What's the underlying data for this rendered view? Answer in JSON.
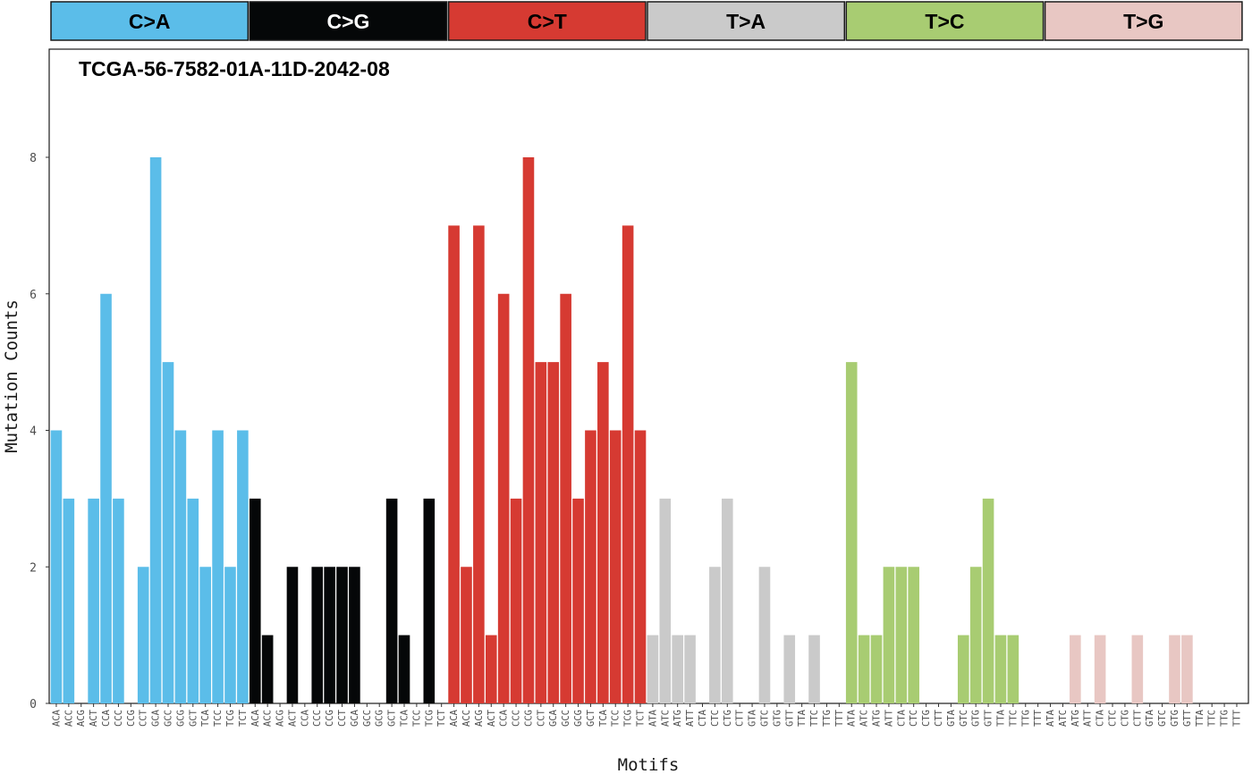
{
  "chart_data": {
    "type": "bar",
    "title": "TCGA-56-7582-01A-11D-2042-08",
    "xlabel": "Motifs",
    "ylabel": "Mutation Counts",
    "ylim": [
      0,
      9.6
    ],
    "yticks": [
      0,
      2,
      4,
      6,
      8
    ],
    "grid": false,
    "groups": [
      {
        "name": "C>A",
        "color": "#5bbde9",
        "text_color": "#000000",
        "categories": [
          "ACA",
          "ACC",
          "ACG",
          "ACT",
          "CCA",
          "CCC",
          "CCG",
          "CCT",
          "GCA",
          "GCC",
          "GCG",
          "GCT",
          "TCA",
          "TCC",
          "TCG",
          "TCT"
        ],
        "values": [
          4,
          3,
          0,
          3,
          6,
          3,
          0,
          2,
          8,
          5,
          4,
          3,
          2,
          4,
          2,
          4
        ]
      },
      {
        "name": "C>G",
        "color": "#050708",
        "text_color": "#ffffff",
        "categories": [
          "ACA",
          "ACC",
          "ACG",
          "ACT",
          "CCA",
          "CCC",
          "CCG",
          "CCT",
          "GCA",
          "GCC",
          "GCG",
          "GCT",
          "TCA",
          "TCC",
          "TCG",
          "TCT"
        ],
        "values": [
          3,
          1,
          0,
          2,
          0,
          2,
          2,
          2,
          2,
          0,
          0,
          3,
          1,
          0,
          3,
          0
        ]
      },
      {
        "name": "C>T",
        "color": "#d63a32",
        "text_color": "#000000",
        "categories": [
          "ACA",
          "ACC",
          "ACG",
          "ACT",
          "CCA",
          "CCC",
          "CCG",
          "CCT",
          "GCA",
          "GCC",
          "GCG",
          "GCT",
          "TCA",
          "TCC",
          "TCG",
          "TCT"
        ],
        "values": [
          7,
          2,
          7,
          1,
          6,
          3,
          8,
          5,
          5,
          6,
          3,
          4,
          5,
          4,
          7,
          4
        ]
      },
      {
        "name": "T>A",
        "color": "#cacaca",
        "text_color": "#000000",
        "categories": [
          "ATA",
          "ATC",
          "ATG",
          "ATT",
          "CTA",
          "CTC",
          "CTG",
          "CTT",
          "GTA",
          "GTC",
          "GTG",
          "GTT",
          "TTA",
          "TTC",
          "TTG",
          "TTT"
        ],
        "values": [
          1,
          3,
          1,
          1,
          0,
          2,
          3,
          0,
          0,
          2,
          0,
          1,
          0,
          1,
          0,
          0
        ]
      },
      {
        "name": "T>C",
        "color": "#a8cc72",
        "text_color": "#000000",
        "categories": [
          "ATA",
          "ATC",
          "ATG",
          "ATT",
          "CTA",
          "CTC",
          "CTG",
          "CTT",
          "GTA",
          "GTC",
          "GTG",
          "GTT",
          "TTA",
          "TTC",
          "TTG",
          "TTT"
        ],
        "values": [
          5,
          1,
          1,
          2,
          2,
          2,
          0,
          0,
          0,
          1,
          2,
          3,
          1,
          1,
          0,
          0
        ]
      },
      {
        "name": "T>G",
        "color": "#e8c7c3",
        "text_color": "#000000",
        "categories": [
          "ATA",
          "ATC",
          "ATG",
          "ATT",
          "CTA",
          "CTC",
          "CTG",
          "CTT",
          "GTA",
          "GTC",
          "GTG",
          "GTT",
          "TTA",
          "TTC",
          "TTG",
          "TTT"
        ],
        "values": [
          0,
          0,
          1,
          0,
          1,
          0,
          0,
          1,
          0,
          0,
          1,
          1,
          0,
          0,
          0,
          0
        ]
      }
    ]
  }
}
